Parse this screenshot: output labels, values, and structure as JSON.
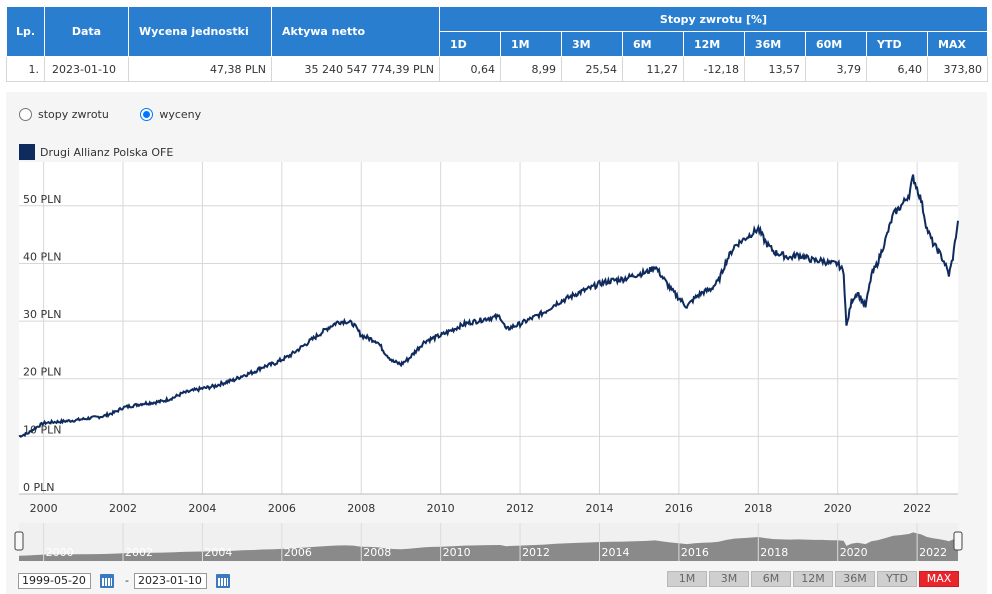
{
  "table": {
    "headers": {
      "lp": "Lp.",
      "data": "Data",
      "wycena": "Wycena jednostki",
      "aktywa": "Aktywa netto",
      "stopy": "Stopy zwrotu [%]",
      "periods": [
        "1D",
        "1M",
        "3M",
        "6M",
        "12M",
        "36M",
        "60M",
        "YTD",
        "MAX"
      ]
    },
    "row": {
      "lp": "1.",
      "data": "2023-01-10",
      "wycena": "47,38 PLN",
      "aktywa": "35 240 547 774,39 PLN",
      "returns": [
        "0,64",
        "8,99",
        "25,54",
        "11,27",
        "-12,18",
        "13,57",
        "3,79",
        "6,40",
        "373,80"
      ]
    }
  },
  "radio": {
    "option1": "stopy zwrotu",
    "option2": "wyceny",
    "selected": "wyceny"
  },
  "legend": {
    "label": "Drugi Allianz Polska OFE",
    "color": "#0f2a5c"
  },
  "chart_data": {
    "type": "line",
    "y_tick_labels": [
      "0 PLN",
      "10 PLN",
      "20 PLN",
      "30 PLN",
      "40 PLN",
      "50 PLN"
    ],
    "y_ticks": [
      0,
      10,
      20,
      30,
      40,
      50
    ],
    "x_tick_labels": [
      "2000",
      "2002",
      "2004",
      "2006",
      "2008",
      "2010",
      "2012",
      "2014",
      "2016",
      "2018",
      "2020",
      "2022"
    ],
    "x_ticks": [
      2000,
      2002,
      2004,
      2006,
      2008,
      2010,
      2012,
      2014,
      2016,
      2018,
      2020,
      2022
    ],
    "xlim": [
      1999.38,
      2023.03
    ],
    "ylim": [
      0,
      57.6
    ],
    "grid": true,
    "series": [
      {
        "name": "Drugi Allianz Polska OFE",
        "color": "#0f2a5c",
        "x": [
          1999.38,
          1999.6,
          1999.8,
          2000.0,
          2000.3,
          2000.5,
          2000.8,
          2001.0,
          2001.3,
          2001.5,
          2001.8,
          2002.0,
          2002.3,
          2002.5,
          2002.8,
          2003.0,
          2003.3,
          2003.5,
          2003.8,
          2004.0,
          2004.3,
          2004.5,
          2004.8,
          2005.0,
          2005.3,
          2005.5,
          2005.8,
          2006.0,
          2006.2,
          2006.4,
          2006.6,
          2006.8,
          2007.0,
          2007.2,
          2007.4,
          2007.6,
          2007.8,
          2008.0,
          2008.2,
          2008.4,
          2008.6,
          2008.8,
          2009.0,
          2009.2,
          2009.4,
          2009.6,
          2009.8,
          2010.0,
          2010.3,
          2010.6,
          2010.9,
          2011.2,
          2011.5,
          2011.65,
          2011.8,
          2012.0,
          2012.3,
          2012.6,
          2012.9,
          2013.2,
          2013.5,
          2013.8,
          2014.0,
          2014.3,
          2014.6,
          2014.9,
          2015.2,
          2015.4,
          2015.6,
          2015.8,
          2016.0,
          2016.2,
          2016.4,
          2016.6,
          2016.8,
          2017.0,
          2017.2,
          2017.4,
          2017.6,
          2017.8,
          2018.0,
          2018.2,
          2018.4,
          2018.6,
          2018.8,
          2019.0,
          2019.2,
          2019.4,
          2019.6,
          2019.8,
          2020.0,
          2020.15,
          2020.22,
          2020.35,
          2020.5,
          2020.7,
          2020.85,
          2021.0,
          2021.2,
          2021.4,
          2021.6,
          2021.8,
          2021.9,
          2022.0,
          2022.1,
          2022.25,
          2022.4,
          2022.55,
          2022.7,
          2022.8,
          2022.9,
          2023.03
        ],
        "y": [
          10.0,
          10.5,
          11.5,
          12.3,
          12.5,
          12.6,
          12.8,
          13.0,
          13.3,
          13.5,
          14.2,
          15.0,
          15.4,
          15.7,
          15.9,
          16.1,
          16.8,
          17.5,
          18.0,
          18.3,
          18.7,
          19.2,
          19.8,
          20.5,
          21.2,
          22.0,
          22.6,
          23.3,
          24.0,
          25.0,
          26.0,
          27.0,
          28.0,
          29.0,
          29.8,
          30.0,
          29.5,
          27.5,
          27.0,
          26.5,
          24.5,
          23.0,
          22.5,
          23.5,
          25.0,
          26.5,
          27.0,
          27.5,
          28.5,
          29.5,
          30.0,
          30.5,
          30.8,
          28.5,
          29.0,
          29.5,
          30.5,
          31.5,
          33.0,
          34.0,
          35.0,
          35.8,
          36.5,
          37.0,
          37.3,
          38.0,
          38.5,
          39.5,
          37.5,
          35.5,
          34.0,
          32.5,
          34.0,
          35.0,
          35.5,
          37.0,
          40.5,
          43.0,
          44.0,
          45.0,
          46.0,
          43.5,
          42.0,
          41.5,
          41.0,
          41.5,
          41.0,
          40.5,
          40.5,
          40.0,
          40.0,
          38.5,
          29.0,
          33.5,
          35.0,
          32.5,
          38.0,
          40.0,
          44.0,
          48.5,
          50.0,
          52.0,
          55.0,
          53.0,
          51.0,
          46.0,
          43.5,
          42.0,
          40.0,
          38.0,
          41.0,
          47.4
        ]
      }
    ]
  },
  "navigator": {
    "x_tick_labels": [
      "2000",
      "2002",
      "2004",
      "2006",
      "2008",
      "2010",
      "2012",
      "2014",
      "2016",
      "2018",
      "2020",
      "2022"
    ]
  },
  "range": {
    "from": "1999-05-20",
    "to": "2023-01-10",
    "separator": "-",
    "buttons": [
      "1M",
      "3M",
      "6M",
      "12M",
      "36M",
      "YTD",
      "MAX"
    ],
    "active": "MAX"
  }
}
